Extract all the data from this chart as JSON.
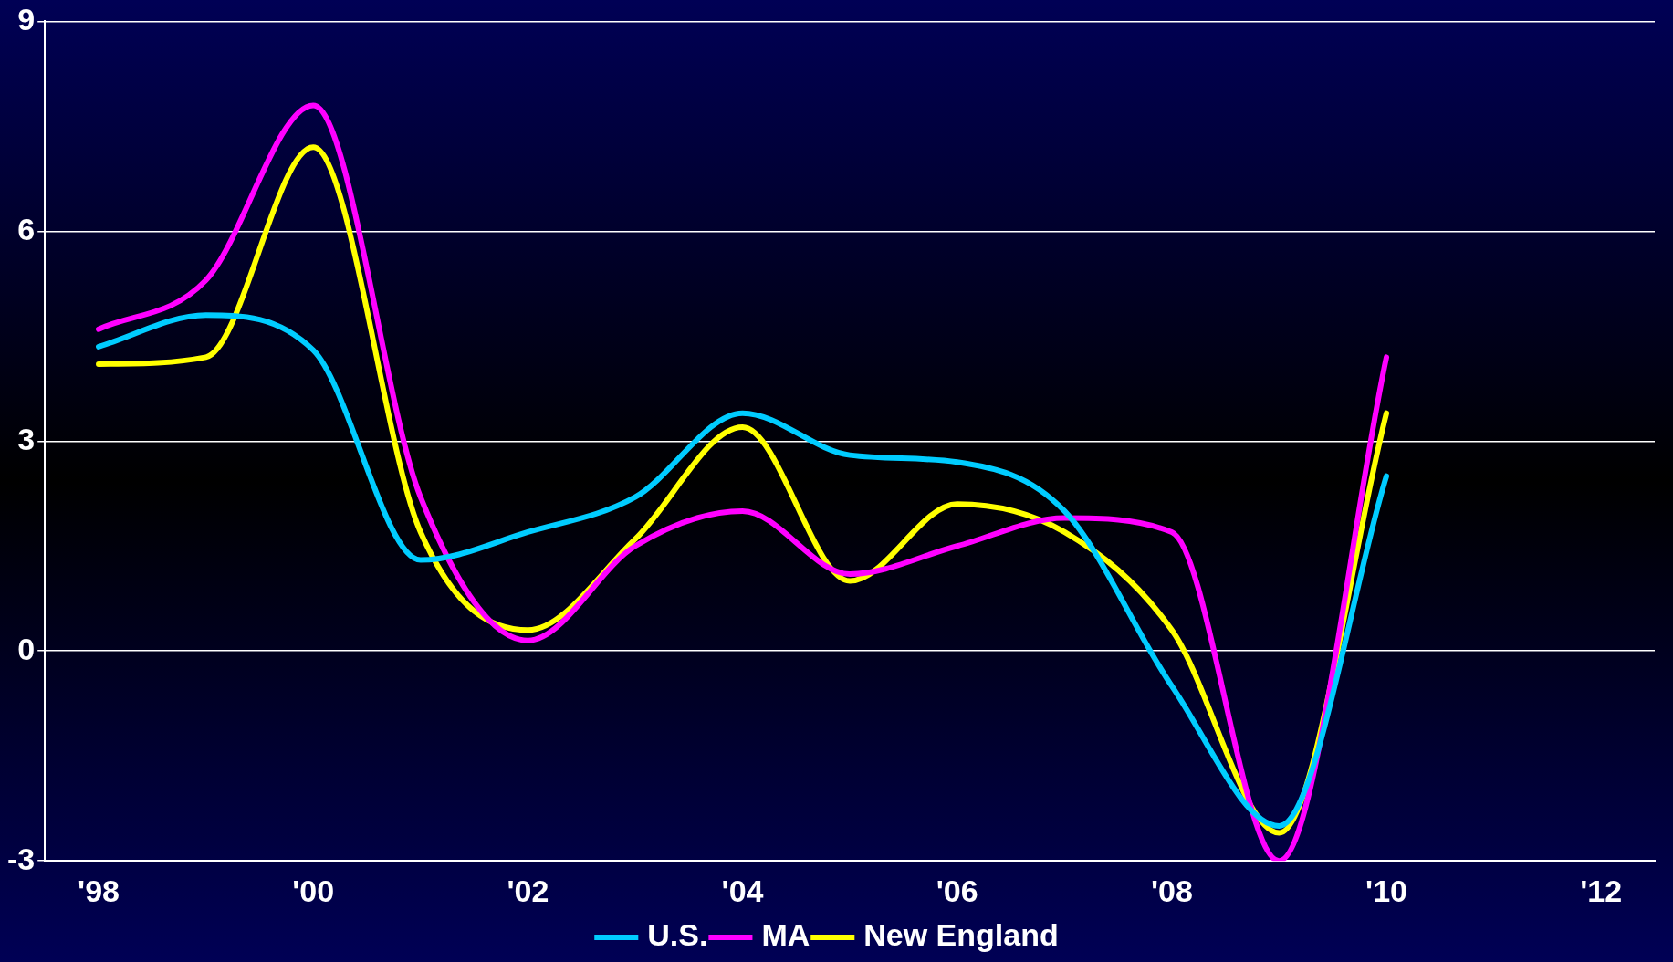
{
  "chart_data": {
    "type": "line",
    "categories": [
      "'98",
      null,
      "'00",
      null,
      "'02",
      null,
      "'04",
      null,
      "'06",
      null,
      "'08",
      null,
      "'10",
      null,
      "'12"
    ],
    "series": [
      {
        "name": "U.S.",
        "color": "#00ccff",
        "values": [
          4.35,
          4.8,
          4.3,
          1.3,
          1.7,
          2.2,
          3.4,
          2.8,
          2.7,
          2.0,
          -0.5,
          -2.5,
          2.5,
          null,
          null
        ]
      },
      {
        "name": "MA",
        "color": "#ff00ff",
        "values": [
          4.6,
          5.3,
          7.8,
          2.2,
          0.15,
          1.5,
          2.0,
          1.1,
          1.5,
          1.9,
          1.7,
          -3,
          4.2,
          null,
          null
        ]
      },
      {
        "name": "New England",
        "color": "#ffff00",
        "values": [
          4.1,
          4.2,
          7.2,
          1.7,
          0.3,
          1.6,
          3.2,
          1.0,
          2.1,
          1.7,
          0.3,
          -2.6,
          3.4,
          null,
          null
        ]
      }
    ],
    "ylim": [
      -3,
      9
    ],
    "yticks": [
      -3,
      0,
      3,
      6,
      9
    ],
    "grid": "y",
    "legend": "bottom",
    "marker": "none",
    "line_style": "solid"
  }
}
